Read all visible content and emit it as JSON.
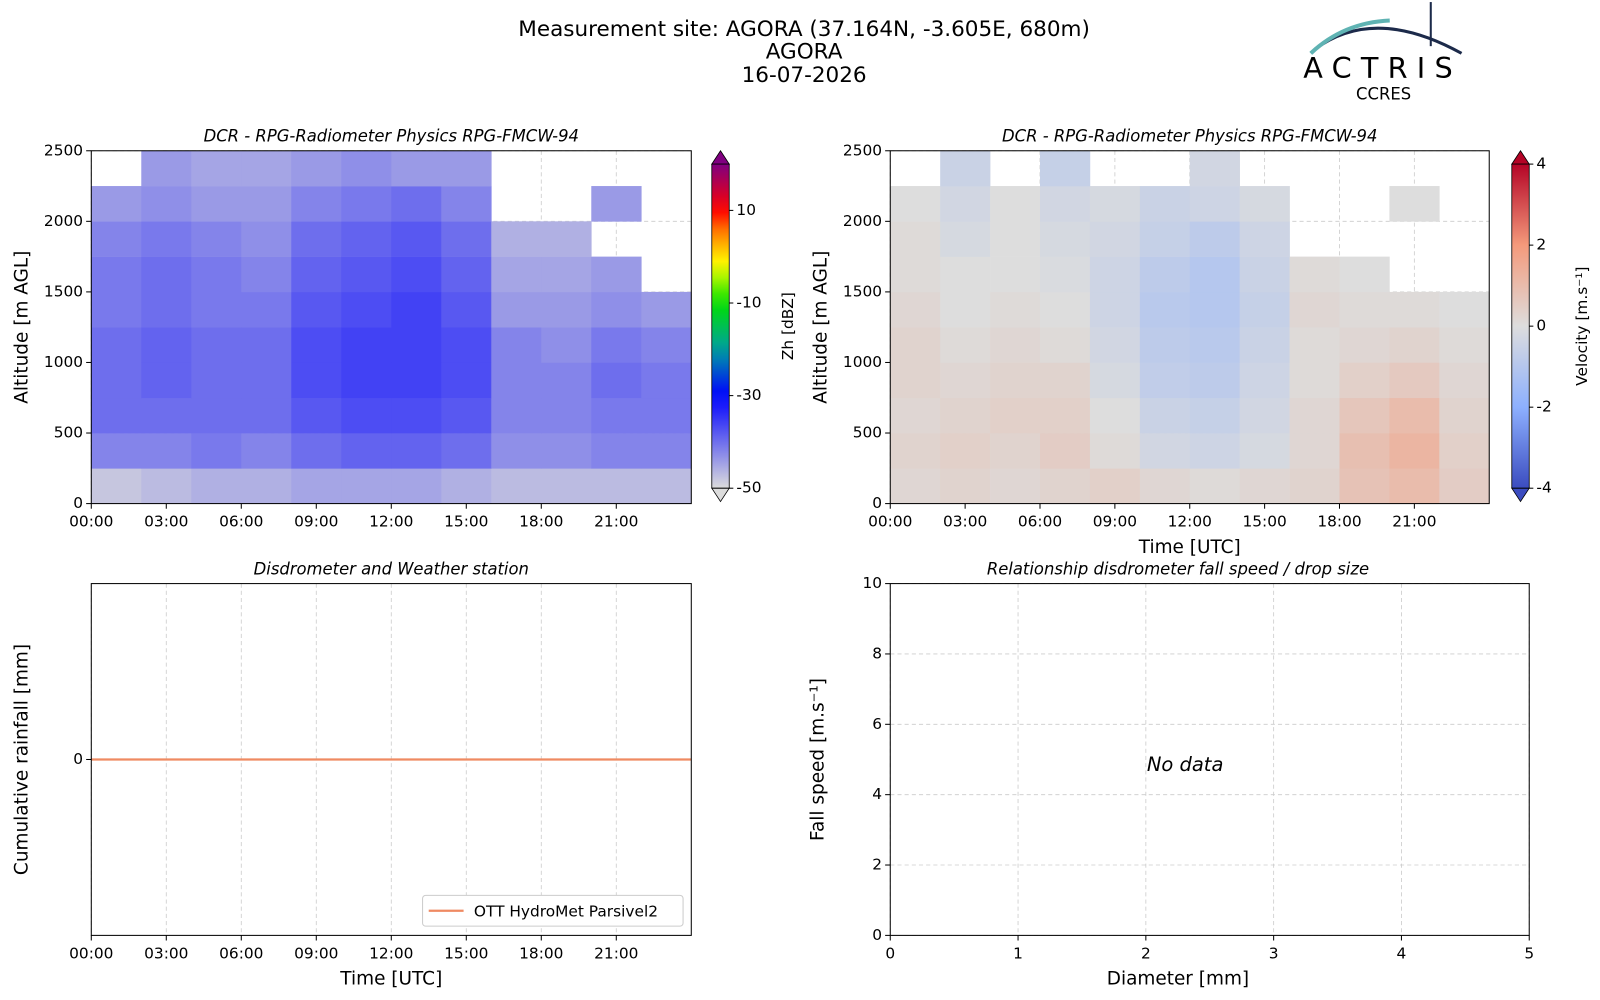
{
  "header": {
    "title": "Measurement site: AGORA (37.164N, -3.605E, 680m)",
    "site": "AGORA",
    "date": "16-07-2026"
  },
  "logo": {
    "name": "ACTRIS",
    "subtitle": "CCRES"
  },
  "chart_data": [
    {
      "type": "heatmap",
      "title": "DCR - RPG-Radiometer Physics RPG-FMCW-94",
      "ylabel": "Altitude [m AGL]",
      "colorbar_label": "Zh [dBZ]",
      "colormap": "dbz",
      "clim": [
        -50,
        20
      ],
      "cticks": [
        -50,
        -30,
        -10,
        10
      ],
      "xlim": [
        0,
        24
      ],
      "ylim": [
        0,
        2500
      ],
      "grid": true,
      "xticks": [
        {
          "value": 0,
          "label": "00:00"
        },
        {
          "value": 3,
          "label": "03:00"
        },
        {
          "value": 6,
          "label": "06:00"
        },
        {
          "value": 9,
          "label": "09:00"
        },
        {
          "value": 12,
          "label": "12:00"
        },
        {
          "value": 15,
          "label": "15:00"
        },
        {
          "value": 18,
          "label": "18:00"
        },
        {
          "value": 21,
          "label": "21:00"
        }
      ],
      "yticks": [
        0,
        500,
        1000,
        1500,
        2000,
        2500
      ],
      "x": [
        0,
        2,
        4,
        6,
        8,
        10,
        12,
        14,
        16,
        18,
        20,
        22,
        24
      ],
      "y": [
        0,
        250,
        500,
        750,
        1000,
        1250,
        1500,
        1750,
        2000,
        2250,
        2500
      ],
      "z": [
        [
          -48,
          -47,
          -46,
          -46,
          -45,
          -45,
          -45,
          -46,
          -47,
          -47,
          -47,
          -47
        ],
        [
          -42,
          -42,
          -41,
          -42,
          -40,
          -39,
          -39,
          -40,
          -43,
          -43,
          -42,
          -42
        ],
        [
          -40,
          -40,
          -40,
          -40,
          -38,
          -37,
          -37,
          -38,
          -42,
          -42,
          -41,
          -41
        ],
        [
          -40,
          -39,
          -40,
          -40,
          -37,
          -36,
          -36,
          -37,
          -42,
          -42,
          -40,
          -41
        ],
        [
          -40,
          -39,
          -40,
          -40,
          -37,
          -36,
          -36,
          -37,
          -42,
          -43,
          -41,
          -42
        ],
        [
          -41,
          -40,
          -41,
          -41,
          -38,
          -37,
          -36,
          -38,
          -44,
          -44,
          -43,
          -44
        ],
        [
          -41,
          -40,
          -41,
          -42,
          -39,
          -38,
          -37,
          -39,
          -45,
          -45,
          -44,
          null
        ],
        [
          -42,
          -41,
          -42,
          -43,
          -40,
          -39,
          -38,
          -40,
          -46,
          -46,
          null,
          null
        ],
        [
          -44,
          -43,
          -44,
          -44,
          -42,
          -41,
          -40,
          -42,
          null,
          null,
          -44,
          null
        ],
        [
          null,
          -44,
          -45,
          -45,
          -44,
          -43,
          -44,
          -44,
          null,
          null,
          null,
          null
        ]
      ]
    },
    {
      "type": "heatmap",
      "title": "DCR - RPG-Radiometer Physics RPG-FMCW-94",
      "ylabel": "Altitude [m AGL]",
      "xlabel": "Time [UTC]",
      "colorbar_label": "Velocity [m.s⁻¹]",
      "colormap": "coolwarm",
      "clim": [
        -4,
        4
      ],
      "cticks": [
        -4,
        -2,
        0,
        2,
        4
      ],
      "xlim": [
        0,
        24
      ],
      "ylim": [
        0,
        2500
      ],
      "grid": true,
      "xticks": [
        {
          "value": 0,
          "label": "00:00"
        },
        {
          "value": 3,
          "label": "03:00"
        },
        {
          "value": 6,
          "label": "06:00"
        },
        {
          "value": 9,
          "label": "09:00"
        },
        {
          "value": 12,
          "label": "12:00"
        },
        {
          "value": 15,
          "label": "15:00"
        },
        {
          "value": 18,
          "label": "18:00"
        },
        {
          "value": 21,
          "label": "21:00"
        }
      ],
      "yticks": [
        0,
        500,
        1000,
        1500,
        2000,
        2500
      ],
      "x": [
        0,
        2,
        4,
        6,
        8,
        10,
        12,
        14,
        16,
        18,
        20,
        22,
        24
      ],
      "y": [
        0,
        250,
        500,
        750,
        1000,
        1250,
        1500,
        1750,
        2000,
        2250,
        2500
      ],
      "z": [
        [
          0.2,
          0.3,
          0.2,
          0.3,
          0.4,
          0.2,
          0.1,
          0.2,
          0.3,
          0.8,
          1.0,
          0.5
        ],
        [
          0.3,
          0.4,
          0.3,
          0.5,
          0.1,
          -0.3,
          -0.4,
          -0.2,
          0.2,
          0.9,
          1.2,
          0.4
        ],
        [
          0.2,
          0.3,
          0.4,
          0.4,
          0.0,
          -0.5,
          -0.6,
          -0.3,
          0.2,
          0.7,
          1.0,
          0.3
        ],
        [
          0.3,
          0.2,
          0.3,
          0.3,
          -0.2,
          -0.7,
          -0.8,
          -0.4,
          0.1,
          0.4,
          0.6,
          0.2
        ],
        [
          0.3,
          0.1,
          0.2,
          0.1,
          -0.3,
          -0.8,
          -0.9,
          -0.5,
          0.1,
          0.2,
          0.3,
          0.1
        ],
        [
          0.2,
          0.0,
          0.1,
          0.0,
          -0.4,
          -0.9,
          -1.0,
          -0.6,
          0.2,
          0.1,
          0.1,
          0.0
        ],
        [
          0.1,
          0.0,
          0.0,
          -0.1,
          -0.4,
          -0.8,
          -1.0,
          -0.5,
          0.1,
          0.0,
          null,
          null
        ],
        [
          0.1,
          -0.2,
          0.0,
          -0.2,
          -0.3,
          -0.6,
          -0.8,
          -0.4,
          null,
          null,
          null,
          null
        ],
        [
          0.0,
          -0.3,
          0.0,
          -0.3,
          -0.2,
          -0.5,
          -0.4,
          -0.2,
          null,
          null,
          0.0,
          null
        ],
        [
          null,
          -0.5,
          null,
          -0.6,
          null,
          null,
          -0.3,
          null,
          null,
          null,
          null,
          null
        ]
      ]
    },
    {
      "type": "line",
      "title": "Disdrometer and Weather station",
      "ylabel": "Cumulative rainfall [mm]",
      "xlabel": "Time [UTC]",
      "xlim": [
        0,
        24
      ],
      "ylim": [
        -0.055,
        0.055
      ],
      "grid": true,
      "legend": "lower right",
      "xticks": [
        {
          "value": 0,
          "label": "00:00"
        },
        {
          "value": 3,
          "label": "03:00"
        },
        {
          "value": 6,
          "label": "06:00"
        },
        {
          "value": 9,
          "label": "09:00"
        },
        {
          "value": 12,
          "label": "12:00"
        },
        {
          "value": 15,
          "label": "15:00"
        },
        {
          "value": 18,
          "label": "18:00"
        },
        {
          "value": 21,
          "label": "21:00"
        }
      ],
      "yticks": [
        0
      ],
      "x": [
        0,
        24
      ],
      "series": [
        {
          "name": "OTT HydroMet Parsivel2",
          "color": "#ef8a62",
          "values": [
            0,
            0
          ]
        }
      ]
    },
    {
      "type": "scatter",
      "title": "Relationship disdrometer fall speed / drop size",
      "ylabel": "Fall speed [m.s⁻¹]",
      "xlabel": "Diameter [mm]",
      "annotation": "No data",
      "xlim": [
        0,
        5
      ],
      "ylim": [
        0,
        10
      ],
      "grid": true,
      "xticks": [
        0,
        1,
        2,
        3,
        4,
        5
      ],
      "yticks": [
        0,
        2,
        4,
        6,
        8,
        10
      ]
    }
  ]
}
